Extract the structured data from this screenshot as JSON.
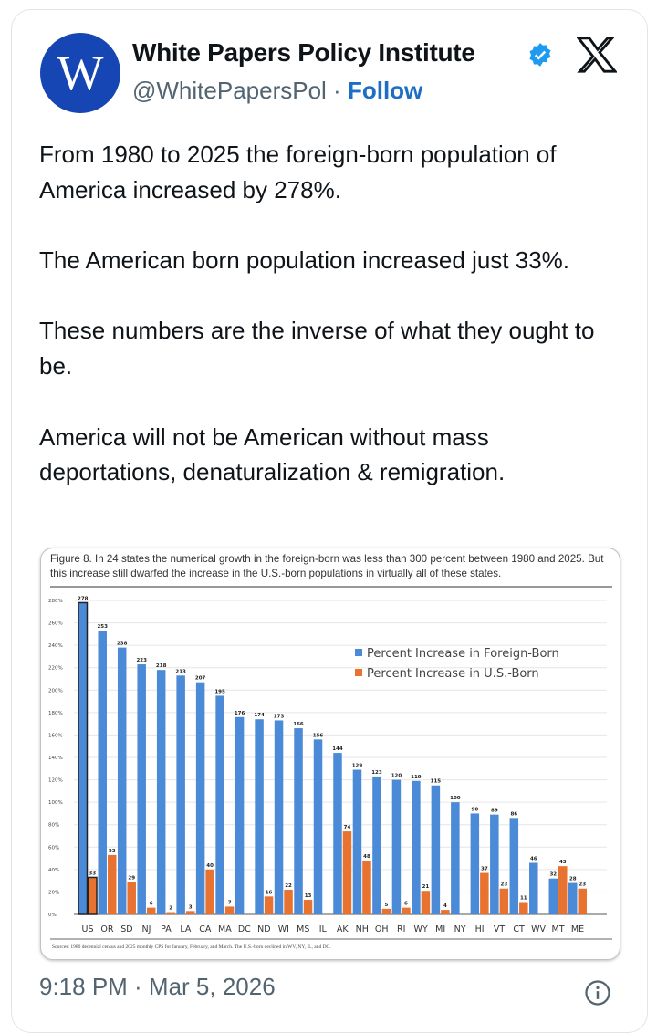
{
  "account": {
    "avatar_letter": "W",
    "name": "White Papers Policy Institute",
    "handle": "@WhitePapersPol",
    "separator": "·",
    "follow_label": "Follow",
    "verified": true,
    "avatar_color": "#1646b3"
  },
  "post": {
    "paragraphs": [
      "From 1980 to 2025 the foreign-born population of America increased by 278%.",
      "The American born population increased just 33%.",
      "These numbers are the inverse of what they ought to be.",
      "America will not be American without mass deportations, denaturalization & remigration."
    ]
  },
  "timestamp": "9:18 PM · Mar 5, 2026",
  "chart_data": {
    "type": "bar",
    "title": "Figure 8. In 24 states the numerical growth in the foreign-born was less than 300 percent between 1980 and 2025. But this increase still dwarfed the increase in the U.S.-born populations in virtually all of these states.",
    "source": "Sources: 1980 decennial census and 2025 monthly CPS for January, February, and March. The U.S.-born declined in WV, NY, IL, and DC.",
    "categories": [
      "US",
      "OR",
      "SD",
      "NJ",
      "PA",
      "LA",
      "CA",
      "MA",
      "DC",
      "ND",
      "WI",
      "MS",
      "IL",
      "AK",
      "NH",
      "OH",
      "RI",
      "WY",
      "MI",
      "NY",
      "HI",
      "VT",
      "CT",
      "WV",
      "MT",
      "ME"
    ],
    "series": [
      {
        "name": "Percent Increase in Foreign-Born",
        "color": "#4a8ad6",
        "values": [
          278,
          253,
          238,
          223,
          218,
          213,
          207,
          195,
          176,
          174,
          173,
          166,
          156,
          144,
          129,
          123,
          120,
          119,
          115,
          100,
          90,
          89,
          86,
          46,
          32,
          28
        ]
      },
      {
        "name": "Percent Increase in U.S.-Born",
        "color": "#e8722f",
        "values": [
          33,
          53,
          29,
          6,
          2,
          3,
          40,
          7,
          null,
          16,
          22,
          13,
          null,
          74,
          48,
          5,
          6,
          21,
          4,
          null,
          37,
          23,
          11,
          null,
          43,
          23
        ]
      }
    ],
    "yticks": [
      "0%",
      "20%",
      "40%",
      "60%",
      "80%",
      "100%",
      "120%",
      "140%",
      "160%",
      "180%",
      "200%",
      "220%",
      "240%",
      "260%",
      "280%"
    ],
    "ylim": [
      0,
      280
    ],
    "grid": true,
    "legend": "top-right"
  }
}
